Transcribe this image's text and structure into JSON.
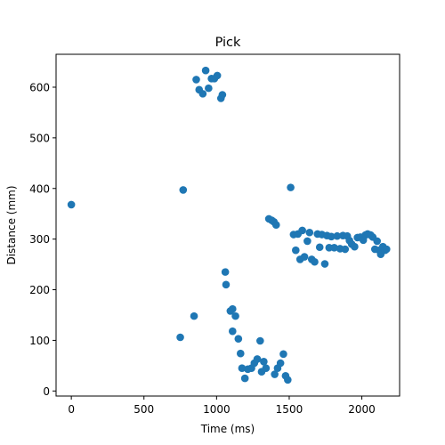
{
  "chart_data": {
    "type": "scatter",
    "title": "Pick",
    "xlabel": "Time (ms)",
    "ylabel": "Distance (mm)",
    "xlim": [
      -105,
      2260
    ],
    "ylim": [
      -10,
      665
    ],
    "xticks": [
      0,
      500,
      1000,
      1500,
      2000
    ],
    "yticks": [
      0,
      100,
      200,
      300,
      400,
      500,
      600
    ],
    "grid": false,
    "marker_color": "#1f77b4",
    "series": [
      {
        "points": [
          [
            0,
            368
          ],
          [
            860,
            615
          ],
          [
            880,
            595
          ],
          [
            905,
            587
          ],
          [
            925,
            633
          ],
          [
            945,
            598
          ],
          [
            965,
            617
          ],
          [
            985,
            617
          ],
          [
            1005,
            623
          ],
          [
            1030,
            578
          ],
          [
            1040,
            585
          ],
          [
            770,
            397
          ],
          [
            750,
            106
          ],
          [
            845,
            148
          ],
          [
            1060,
            235
          ],
          [
            1065,
            210
          ],
          [
            1095,
            158
          ],
          [
            1110,
            162
          ],
          [
            1110,
            118
          ],
          [
            1130,
            148
          ],
          [
            1150,
            103
          ],
          [
            1165,
            74
          ],
          [
            1175,
            45
          ],
          [
            1195,
            25
          ],
          [
            1215,
            43
          ],
          [
            1240,
            45
          ],
          [
            1260,
            55
          ],
          [
            1280,
            63
          ],
          [
            1300,
            99
          ],
          [
            1310,
            38
          ],
          [
            1325,
            58
          ],
          [
            1340,
            45
          ],
          [
            1400,
            33
          ],
          [
            1420,
            45
          ],
          [
            1440,
            55
          ],
          [
            1460,
            73
          ],
          [
            1475,
            30
          ],
          [
            1490,
            22
          ],
          [
            1510,
            402
          ],
          [
            1360,
            340
          ],
          [
            1380,
            337
          ],
          [
            1395,
            334
          ],
          [
            1410,
            328
          ],
          [
            1530,
            309
          ],
          [
            1545,
            278
          ],
          [
            1560,
            310
          ],
          [
            1575,
            260
          ],
          [
            1590,
            317
          ],
          [
            1605,
            265
          ],
          [
            1625,
            296
          ],
          [
            1640,
            313
          ],
          [
            1655,
            260
          ],
          [
            1675,
            255
          ],
          [
            1695,
            310
          ],
          [
            1710,
            284
          ],
          [
            1725,
            309
          ],
          [
            1745,
            251
          ],
          [
            1760,
            307
          ],
          [
            1775,
            283
          ],
          [
            1790,
            305
          ],
          [
            1810,
            283
          ],
          [
            1830,
            306
          ],
          [
            1850,
            281
          ],
          [
            1870,
            307
          ],
          [
            1885,
            280
          ],
          [
            1900,
            306
          ],
          [
            1915,
            297
          ],
          [
            1930,
            290
          ],
          [
            1950,
            285
          ],
          [
            1970,
            303
          ],
          [
            1990,
            304
          ],
          [
            2010,
            298
          ],
          [
            2025,
            308
          ],
          [
            2040,
            310
          ],
          [
            2060,
            308
          ],
          [
            2075,
            304
          ],
          [
            2090,
            280
          ],
          [
            2105,
            296
          ],
          [
            2120,
            278
          ],
          [
            2130,
            270
          ],
          [
            2145,
            285
          ],
          [
            2160,
            278
          ],
          [
            2170,
            280
          ]
        ]
      }
    ]
  }
}
